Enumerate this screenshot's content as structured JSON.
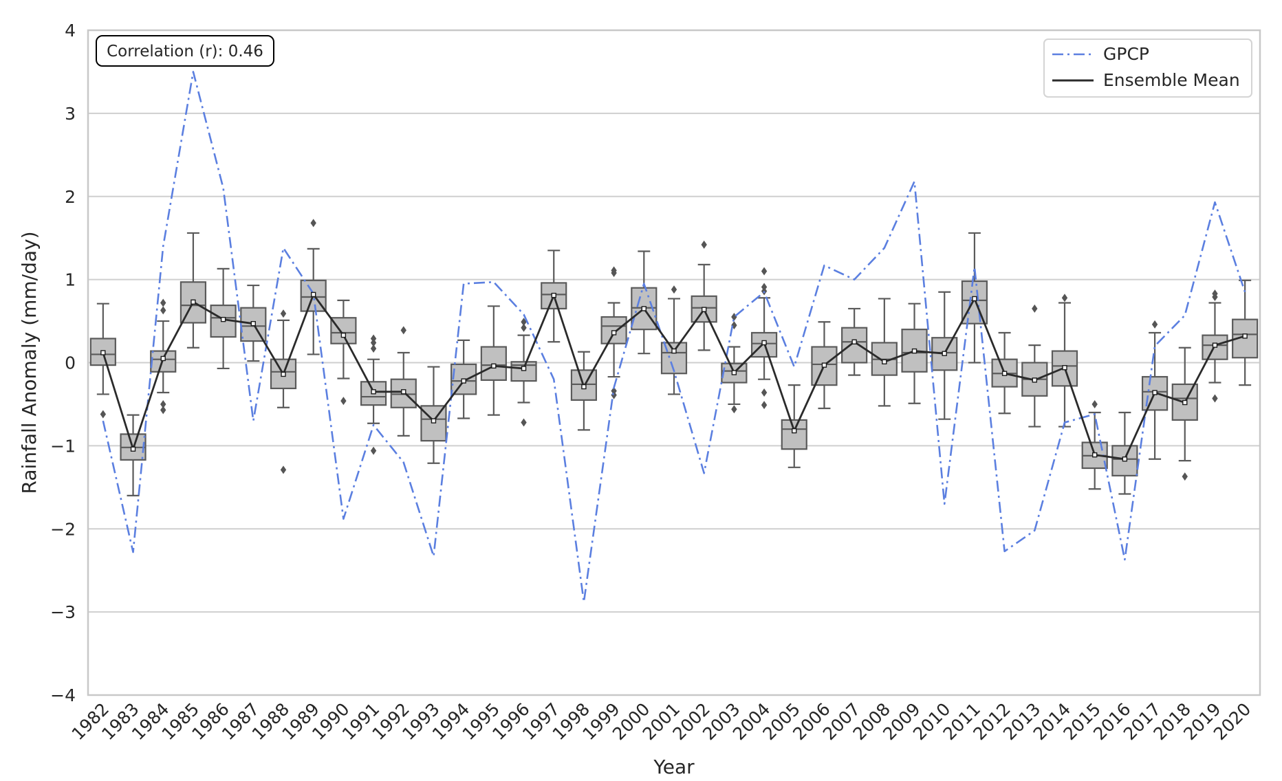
{
  "chart_data": {
    "type": "box+line",
    "xlabel": "Year",
    "ylabel": "Rainfall Anomaly (mm/day)",
    "ylim": [
      -4,
      4
    ],
    "yticks": [
      -4,
      -3,
      -2,
      -1,
      0,
      1,
      2,
      3,
      4
    ],
    "ytick_labels": [
      "−4",
      "−3",
      "−2",
      "−1",
      "0",
      "1",
      "2",
      "3",
      "4"
    ],
    "grid": "horizontal",
    "legend_position": "top-right",
    "annotation": "Correlation (r): 0.46",
    "categories": [
      "1982",
      "1983",
      "1984",
      "1985",
      "1986",
      "1987",
      "1988",
      "1989",
      "1990",
      "1991",
      "1992",
      "1993",
      "1994",
      "1995",
      "1996",
      "1997",
      "1998",
      "1999",
      "2000",
      "2001",
      "2002",
      "2003",
      "2004",
      "2005",
      "2006",
      "2007",
      "2008",
      "2009",
      "2010",
      "2011",
      "2012",
      "2013",
      "2014",
      "2015",
      "2016",
      "2017",
      "2018",
      "2019",
      "2020"
    ],
    "series": [
      {
        "name": "GPCP",
        "style": "dash-dot",
        "color": "#5b7fe0",
        "values": [
          -0.7,
          -2.28,
          1.4,
          3.5,
          2.1,
          -0.7,
          1.38,
          0.83,
          -1.88,
          -0.75,
          -1.2,
          -2.33,
          0.95,
          0.97,
          0.58,
          -0.2,
          -2.88,
          -0.3,
          0.95,
          -0.1,
          -1.33,
          0.55,
          0.85,
          -0.05,
          1.17,
          1.0,
          1.38,
          2.18,
          -1.7,
          1.15,
          -2.27,
          -2.02,
          -0.72,
          -0.62,
          -2.37,
          0.2,
          0.57,
          1.93,
          0.85
        ]
      },
      {
        "name": "Ensemble Mean",
        "style": "solid",
        "color": "#2b2b2b",
        "values": [
          0.12,
          -1.04,
          0.05,
          0.73,
          0.52,
          0.47,
          -0.14,
          0.82,
          0.33,
          -0.35,
          -0.35,
          -0.7,
          -0.22,
          -0.04,
          -0.07,
          0.81,
          -0.29,
          0.36,
          0.65,
          0.14,
          0.64,
          -0.12,
          0.24,
          -0.82,
          -0.03,
          0.25,
          0.01,
          0.14,
          0.11,
          0.77,
          -0.13,
          -0.21,
          -0.06,
          -1.11,
          -1.16,
          -0.36,
          -0.48,
          0.21,
          0.32
        ]
      }
    ],
    "boxes": [
      {
        "category": "1982",
        "q1": -0.03,
        "median": 0.1,
        "q3": 0.29,
        "whisker_low": -0.38,
        "whisker_high": 0.71,
        "outliers": [
          -0.62
        ]
      },
      {
        "category": "1983",
        "q1": -1.17,
        "median": -1.02,
        "q3": -0.86,
        "whisker_low": -1.6,
        "whisker_high": -0.63,
        "outliers": []
      },
      {
        "category": "1984",
        "q1": -0.11,
        "median": 0.04,
        "q3": 0.14,
        "whisker_low": -0.36,
        "whisker_high": 0.5,
        "outliers": [
          0.72,
          0.63,
          -0.5,
          -0.57
        ]
      },
      {
        "category": "1985",
        "q1": 0.48,
        "median": 0.69,
        "q3": 0.97,
        "whisker_low": 0.18,
        "whisker_high": 1.56,
        "outliers": []
      },
      {
        "category": "1986",
        "q1": 0.31,
        "median": 0.54,
        "q3": 0.69,
        "whisker_low": -0.07,
        "whisker_high": 1.13,
        "outliers": []
      },
      {
        "category": "1987",
        "q1": 0.26,
        "median": 0.44,
        "q3": 0.66,
        "whisker_low": 0.02,
        "whisker_high": 0.93,
        "outliers": []
      },
      {
        "category": "1988",
        "q1": -0.31,
        "median": -0.11,
        "q3": 0.04,
        "whisker_low": -0.54,
        "whisker_high": 0.51,
        "outliers": [
          0.59,
          -1.29
        ]
      },
      {
        "category": "1989",
        "q1": 0.62,
        "median": 0.79,
        "q3": 0.99,
        "whisker_low": 0.1,
        "whisker_high": 1.37,
        "outliers": [
          1.68
        ]
      },
      {
        "category": "1990",
        "q1": 0.23,
        "median": 0.36,
        "q3": 0.54,
        "whisker_low": -0.19,
        "whisker_high": 0.75,
        "outliers": [
          -0.46
        ]
      },
      {
        "category": "1991",
        "q1": -0.51,
        "median": -0.41,
        "q3": -0.23,
        "whisker_low": -0.73,
        "whisker_high": 0.04,
        "outliers": [
          0.29,
          0.24,
          0.17,
          -1.06
        ]
      },
      {
        "category": "1992",
        "q1": -0.54,
        "median": -0.38,
        "q3": -0.2,
        "whisker_low": -0.88,
        "whisker_high": 0.12,
        "outliers": [
          0.39
        ]
      },
      {
        "category": "1993",
        "q1": -0.94,
        "median": -0.68,
        "q3": -0.52,
        "whisker_low": -1.21,
        "whisker_high": -0.05,
        "outliers": []
      },
      {
        "category": "1994",
        "q1": -0.38,
        "median": -0.22,
        "q3": -0.02,
        "whisker_low": -0.67,
        "whisker_high": 0.27,
        "outliers": []
      },
      {
        "category": "1995",
        "q1": -0.21,
        "median": -0.03,
        "q3": 0.19,
        "whisker_low": -0.63,
        "whisker_high": 0.68,
        "outliers": []
      },
      {
        "category": "1996",
        "q1": -0.22,
        "median": -0.03,
        "q3": 0.01,
        "whisker_low": -0.48,
        "whisker_high": 0.33,
        "outliers": [
          0.49,
          0.42,
          -0.72
        ]
      },
      {
        "category": "1997",
        "q1": 0.65,
        "median": 0.82,
        "q3": 0.96,
        "whisker_low": 0.25,
        "whisker_high": 1.35,
        "outliers": []
      },
      {
        "category": "1998",
        "q1": -0.45,
        "median": -0.26,
        "q3": -0.09,
        "whisker_low": -0.81,
        "whisker_high": 0.13,
        "outliers": []
      },
      {
        "category": "1999",
        "q1": 0.23,
        "median": 0.44,
        "q3": 0.55,
        "whisker_low": -0.17,
        "whisker_high": 0.72,
        "outliers": [
          1.11,
          1.08,
          -0.34,
          -0.39
        ]
      },
      {
        "category": "2000",
        "q1": 0.4,
        "median": 0.66,
        "q3": 0.9,
        "whisker_low": 0.11,
        "whisker_high": 1.34,
        "outliers": []
      },
      {
        "category": "2001",
        "q1": -0.13,
        "median": 0.12,
        "q3": 0.24,
        "whisker_low": -0.38,
        "whisker_high": 0.77,
        "outliers": [
          0.88
        ]
      },
      {
        "category": "2002",
        "q1": 0.49,
        "median": 0.66,
        "q3": 0.8,
        "whisker_low": 0.15,
        "whisker_high": 1.18,
        "outliers": [
          1.42
        ]
      },
      {
        "category": "2003",
        "q1": -0.24,
        "median": -0.1,
        "q3": -0.01,
        "whisker_low": -0.5,
        "whisker_high": 0.19,
        "outliers": [
          0.55,
          0.45,
          -0.56
        ]
      },
      {
        "category": "2004",
        "q1": 0.07,
        "median": 0.23,
        "q3": 0.36,
        "whisker_low": -0.2,
        "whisker_high": 0.78,
        "outliers": [
          1.1,
          0.91,
          0.86,
          -0.36,
          -0.51
        ]
      },
      {
        "category": "2005",
        "q1": -1.04,
        "median": -0.8,
        "q3": -0.69,
        "whisker_low": -1.26,
        "whisker_high": -0.27,
        "outliers": []
      },
      {
        "category": "2006",
        "q1": -0.27,
        "median": -0.02,
        "q3": 0.19,
        "whisker_low": -0.55,
        "whisker_high": 0.49,
        "outliers": []
      },
      {
        "category": "2007",
        "q1": 0.0,
        "median": 0.25,
        "q3": 0.42,
        "whisker_low": -0.15,
        "whisker_high": 0.65,
        "outliers": []
      },
      {
        "category": "2008",
        "q1": -0.15,
        "median": 0.04,
        "q3": 0.24,
        "whisker_low": -0.52,
        "whisker_high": 0.77,
        "outliers": []
      },
      {
        "category": "2009",
        "q1": -0.11,
        "median": 0.12,
        "q3": 0.4,
        "whisker_low": -0.49,
        "whisker_high": 0.71,
        "outliers": []
      },
      {
        "category": "2010",
        "q1": -0.09,
        "median": 0.12,
        "q3": 0.3,
        "whisker_low": -0.68,
        "whisker_high": 0.85,
        "outliers": []
      },
      {
        "category": "2011",
        "q1": 0.47,
        "median": 0.75,
        "q3": 0.98,
        "whisker_low": 0.0,
        "whisker_high": 1.56,
        "outliers": []
      },
      {
        "category": "2012",
        "q1": -0.29,
        "median": -0.13,
        "q3": 0.04,
        "whisker_low": -0.61,
        "whisker_high": 0.36,
        "outliers": []
      },
      {
        "category": "2013",
        "q1": -0.4,
        "median": -0.2,
        "q3": 0.0,
        "whisker_low": -0.77,
        "whisker_high": 0.21,
        "outliers": [
          0.65
        ]
      },
      {
        "category": "2014",
        "q1": -0.28,
        "median": -0.04,
        "q3": 0.14,
        "whisker_low": -0.77,
        "whisker_high": 0.72,
        "outliers": [
          0.78
        ]
      },
      {
        "category": "2015",
        "q1": -1.27,
        "median": -1.12,
        "q3": -0.96,
        "whisker_low": -1.52,
        "whisker_high": -0.6,
        "outliers": [
          -0.5
        ]
      },
      {
        "category": "2016",
        "q1": -1.36,
        "median": -1.16,
        "q3": -1.0,
        "whisker_low": -1.58,
        "whisker_high": -0.6,
        "outliers": []
      },
      {
        "category": "2017",
        "q1": -0.57,
        "median": -0.35,
        "q3": -0.17,
        "whisker_low": -1.16,
        "whisker_high": 0.36,
        "outliers": [
          0.46
        ]
      },
      {
        "category": "2018",
        "q1": -0.69,
        "median": -0.43,
        "q3": -0.26,
        "whisker_low": -1.18,
        "whisker_high": 0.18,
        "outliers": [
          -1.37
        ]
      },
      {
        "category": "2019",
        "q1": 0.04,
        "median": 0.21,
        "q3": 0.33,
        "whisker_low": -0.24,
        "whisker_high": 0.72,
        "outliers": [
          0.83,
          0.79,
          -0.43
        ]
      },
      {
        "category": "2020",
        "q1": 0.06,
        "median": 0.34,
        "q3": 0.52,
        "whisker_low": -0.27,
        "whisker_high": 0.99,
        "outliers": []
      }
    ],
    "colors": {
      "box_fill": "#c0c0c0",
      "box_edge": "#5a5a5a",
      "grid": "#cfcfcf",
      "axes_frame": "#c8c8c8",
      "text": "#262626"
    }
  }
}
